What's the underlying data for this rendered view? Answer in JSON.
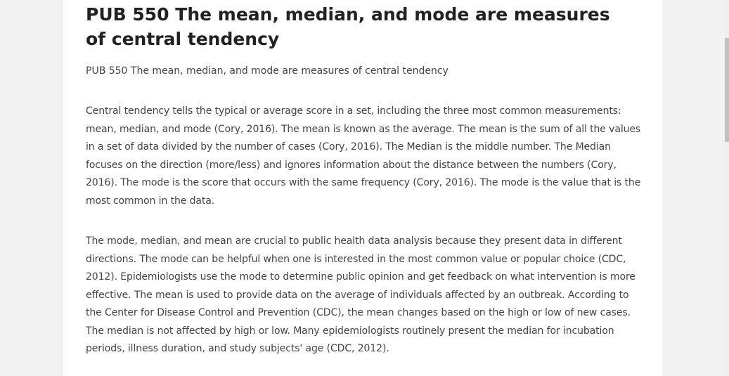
{
  "article": {
    "title": "PUB 550 The mean, median, and mode are measures of central tendency",
    "subtitle": "PUB 550 The mean, median, and mode are measures of central tendency",
    "paragraphs": [
      "Central tendency tells the typical or average score in a set, including the three most common measurements: mean, median, and mode (Cory, 2016). The mean is known as the average. The mean is the sum of all the values in a set of data divided by the number of cases (Cory, 2016). The Median is the middle number. The Median focuses on the direction (more/less) and ignores information about the distance between the numbers (Cory, 2016). The mode is the score that occurs with the same frequency (Cory, 2016). The mode is the value that is the most common in the data.",
      "The mode, median, and mean are crucial to public health data analysis because they present data in different directions. The mode can be helpful when one is interested in the most common value or popular choice (CDC, 2012). Epidemiologists use the mode to determine public opinion and get feedback on what intervention is more effective. The mean is used to provide data on the average of individuals affected by an outbreak. According to the Center for Disease Control and Prevention (CDC), the mean changes based on the high or low of new cases. The median is not affected by high or low. Many epidemiologists routinely present the median for incubation periods, illness duration, and study subjects' age (CDC, 2012)."
    ]
  },
  "colors": {
    "background": "#f2f2f2",
    "card": "#ffffff",
    "title": "#222222",
    "body_text": "#444444",
    "scroll_thumb": "#c1c1c1"
  }
}
